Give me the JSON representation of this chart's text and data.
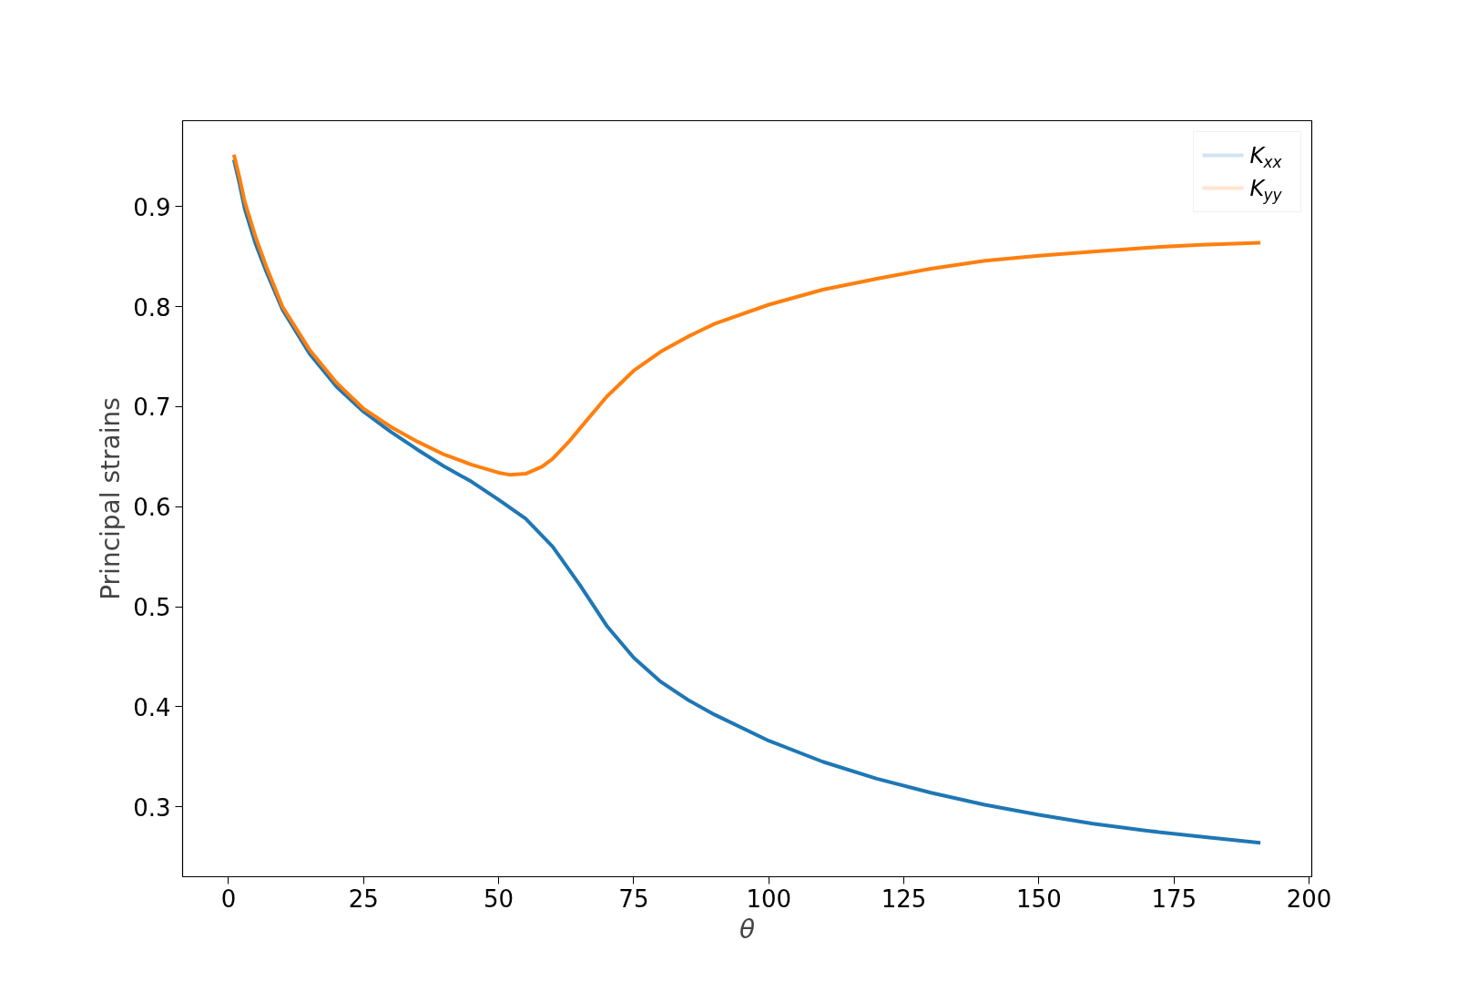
{
  "chart_data": {
    "type": "line",
    "xlabel": "θ",
    "ylabel": "Principal strains",
    "xlim": [
      -8.5,
      200.5
    ],
    "xticks": [
      0,
      25,
      50,
      75,
      100,
      125,
      150,
      175,
      200
    ],
    "ylim": [
      0.23,
      0.986
    ],
    "yticks": [
      0.3,
      0.4,
      0.5,
      0.6,
      0.7,
      0.8,
      0.9
    ],
    "grid": false,
    "legend": "top right",
    "line_style": "solid",
    "series": [
      {
        "name": "K$_{xx}$",
        "color": "#1f77b4",
        "x": [
          1,
          2,
          3,
          5,
          7,
          10,
          15,
          20,
          25,
          30,
          35,
          40,
          45,
          50,
          55,
          60,
          65,
          70,
          75,
          80,
          85,
          90,
          100,
          110,
          120,
          130,
          140,
          150,
          160,
          170,
          180,
          191
        ],
        "values": [
          0.947,
          0.924,
          0.898,
          0.863,
          0.835,
          0.797,
          0.753,
          0.72,
          0.695,
          0.675,
          0.657,
          0.64,
          0.625,
          0.607,
          0.588,
          0.56,
          0.522,
          0.481,
          0.449,
          0.425,
          0.407,
          0.392,
          0.366,
          0.345,
          0.328,
          0.314,
          0.302,
          0.292,
          0.283,
          0.276,
          0.27,
          0.264
        ]
      },
      {
        "name": "K$_{yy}$",
        "color": "#ff7f0e",
        "x": [
          1,
          2,
          3,
          5,
          7,
          10,
          15,
          20,
          25,
          30,
          35,
          40,
          45,
          50,
          52,
          55,
          58,
          60,
          63,
          65,
          70,
          75,
          80,
          85,
          90,
          100,
          110,
          120,
          130,
          140,
          150,
          160,
          170,
          180,
          191
        ],
        "values": [
          0.952,
          0.93,
          0.905,
          0.87,
          0.84,
          0.8,
          0.757,
          0.724,
          0.698,
          0.68,
          0.665,
          0.652,
          0.642,
          0.634,
          0.632,
          0.633,
          0.64,
          0.648,
          0.665,
          0.678,
          0.71,
          0.736,
          0.755,
          0.77,
          0.783,
          0.802,
          0.817,
          0.828,
          0.838,
          0.846,
          0.851,
          0.855,
          0.859,
          0.862,
          0.864
        ]
      }
    ]
  }
}
